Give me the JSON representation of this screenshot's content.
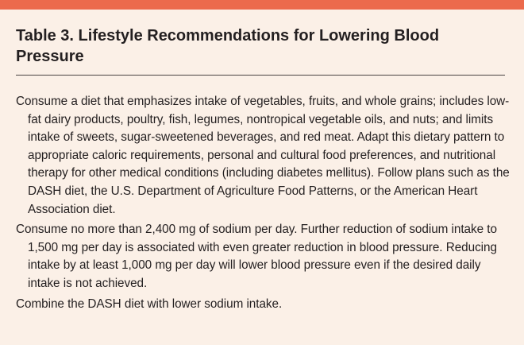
{
  "table": {
    "title": "Table 3. Lifestyle Recommendations for Lowering Blood Pressure",
    "recommendations": [
      "Consume a diet that emphasizes intake of vegetables, fruits, and whole grains; includes low-fat dairy products, poultry, fish, legumes, nontropical vegetable oils, and nuts; and limits intake of sweets, sugar-sweetened beverages, and red meat. Adapt this dietary pattern to appropriate caloric requirements, personal and cultural food preferences, and nutritional therapy for other medical conditions (including diabetes mellitus). Follow plans such as the DASH diet, the U.S. Department of Agriculture Food Patterns, or the American Heart Association diet.",
      "Consume no more than 2,400 mg of sodium per day. Further reduction of sodium intake to 1,500 mg per day is associated with even greater reduction in blood pressure. Reducing intake by at least 1,000 mg per day will lower blood pressure even if the desired daily intake is not achieved.",
      "Combine the DASH diet with lower sodium intake."
    ]
  },
  "colors": {
    "accent_band": "#ec6a4c",
    "panel_background": "#fbf0e7",
    "text": "#231f20"
  }
}
